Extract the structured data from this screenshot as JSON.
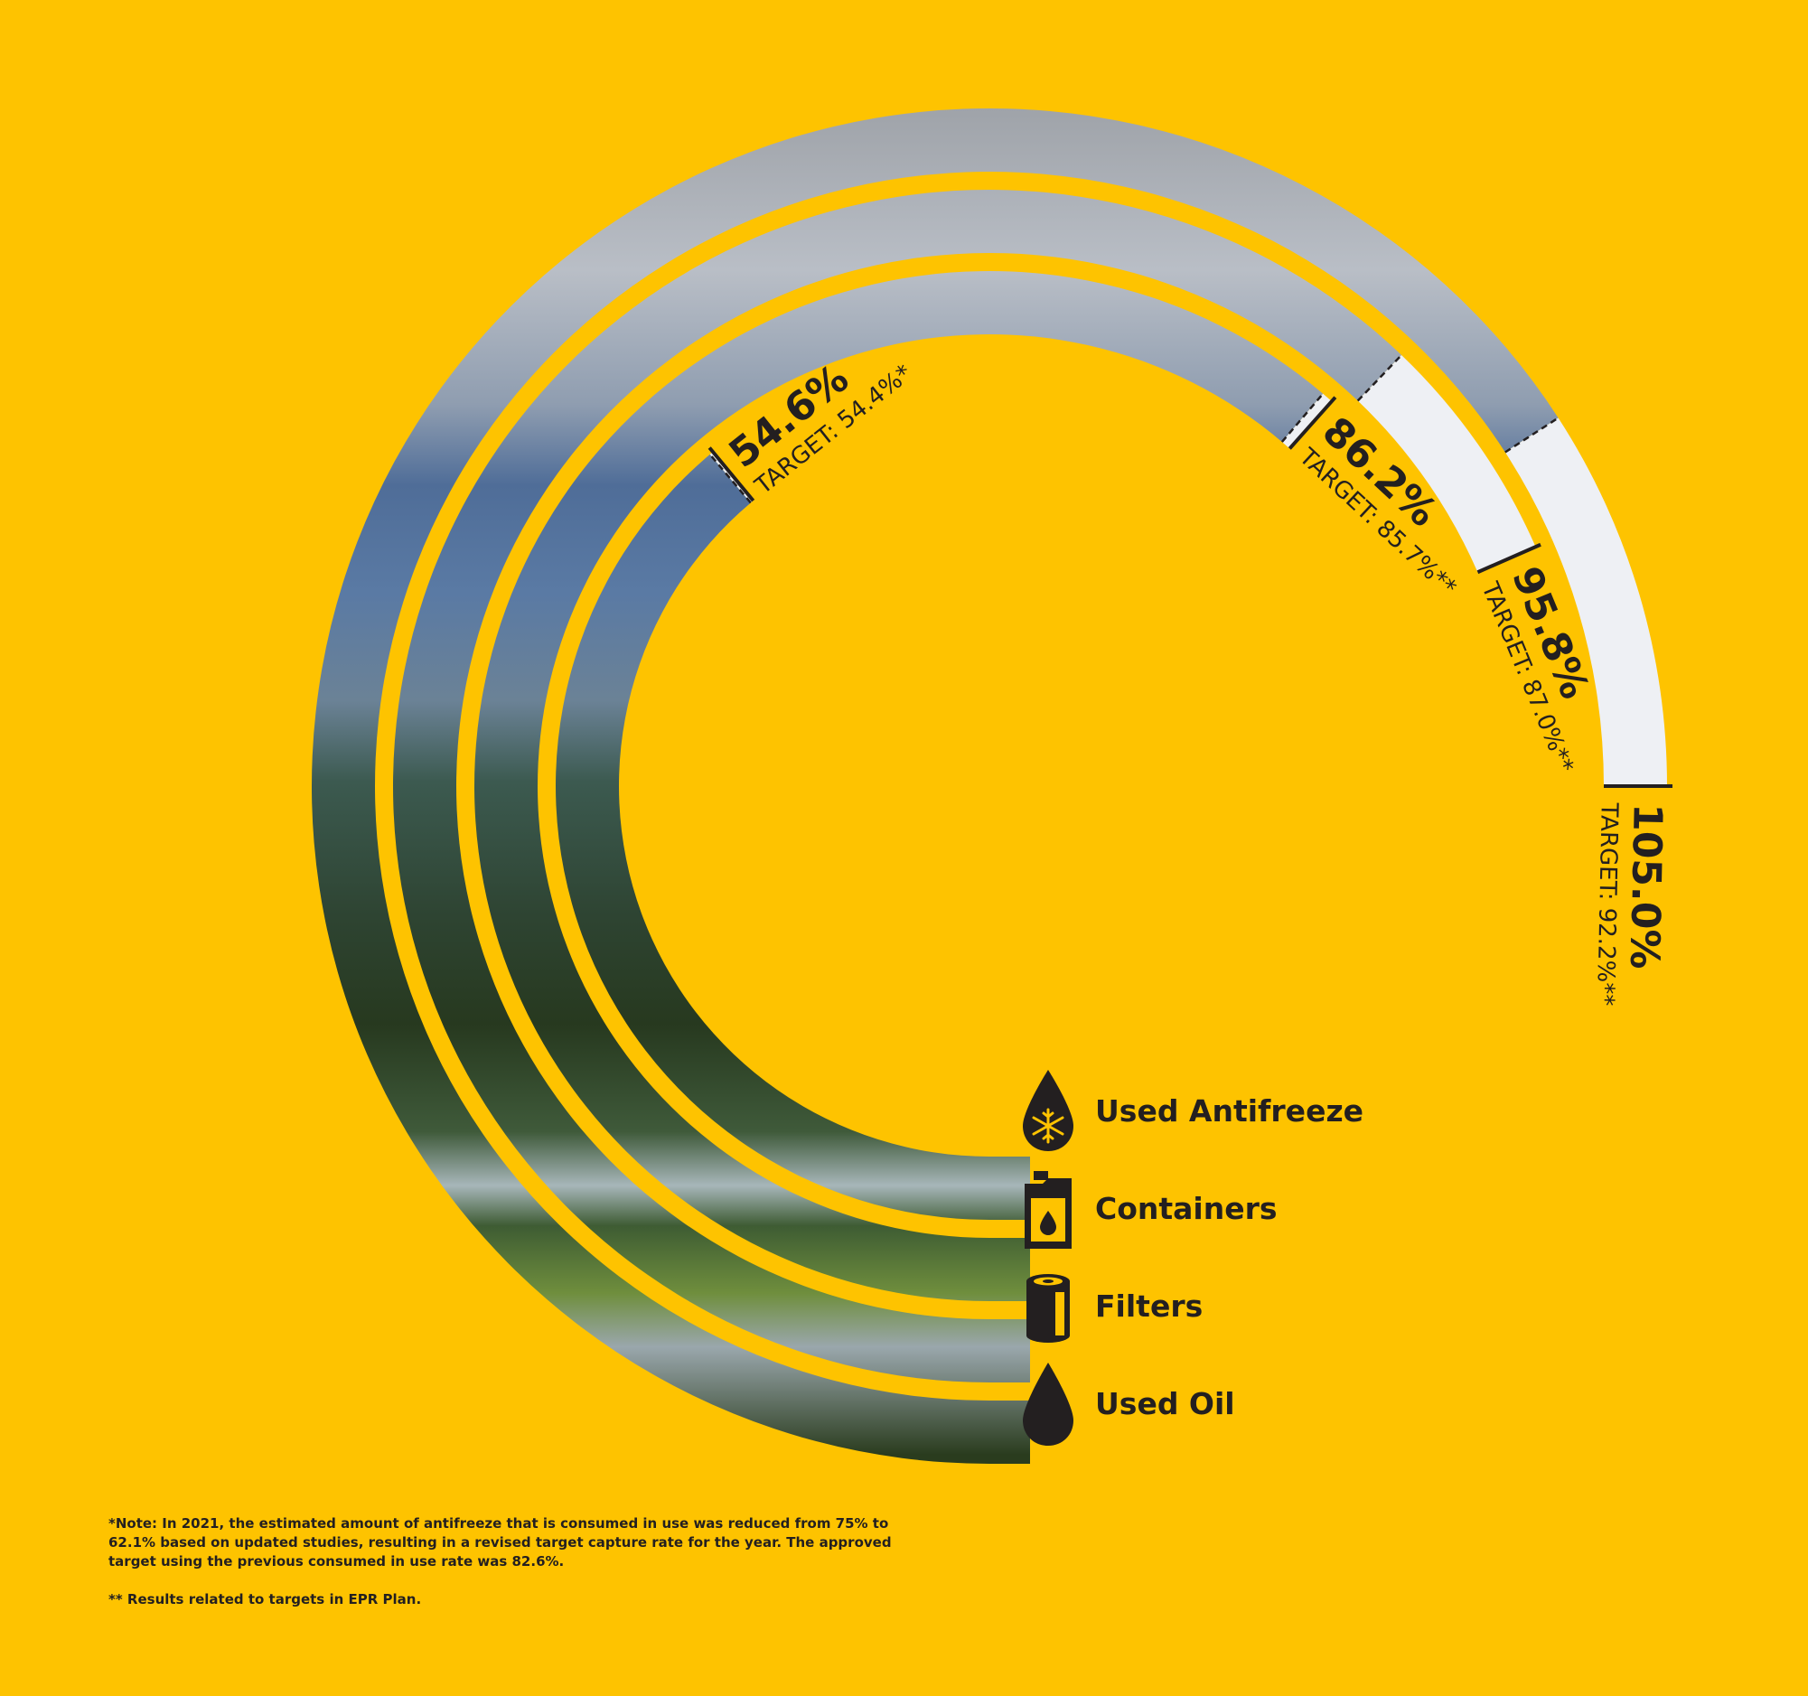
{
  "chart_data": {
    "type": "radial_bar",
    "series": [
      {
        "name": "Used Oil",
        "value_label": "105.0%",
        "target_label": "TARGET: 92.2%**",
        "value": 105.0,
        "target": 92.2,
        "icon": "oil-drop-icon"
      },
      {
        "name": "Filters",
        "value_label": "95.8%",
        "target_label": "TARGET: 87.0%**",
        "value": 95.8,
        "target": 87.0,
        "icon": "oil-filter-icon"
      },
      {
        "name": "Containers",
        "value_label": "86.2%",
        "target_label": "TARGET: 85.7%**",
        "value": 86.2,
        "target": 85.7,
        "icon": "oil-container-icon"
      },
      {
        "name": "Used Antifreeze",
        "value_label": "54.6%",
        "target_label": "TARGET: 54.4%*",
        "value": 54.6,
        "target": 54.4,
        "icon": "antifreeze-drop-icon"
      }
    ]
  },
  "legend": [
    {
      "label": "Used Antifreeze",
      "icon": "antifreeze-drop-icon"
    },
    {
      "label": "Containers",
      "icon": "oil-container-icon"
    },
    {
      "label": "Filters",
      "icon": "oil-filter-icon"
    },
    {
      "label": "Used Oil",
      "icon": "oil-drop-icon"
    }
  ],
  "notes": {
    "note1": "*Note: In 2021, the estimated amount of antifreeze that is consumed in use was reduced from 75% to 62.1% based on updated studies, resulting in a revised target capture rate for the year. The approved target using the previous consumed in use rate was 82.6%.",
    "note2": "** Results related to targets in EPR Plan."
  },
  "colors": {
    "background": "#FEC300",
    "text": "#231F20",
    "over_target": "#EEF0F4"
  }
}
